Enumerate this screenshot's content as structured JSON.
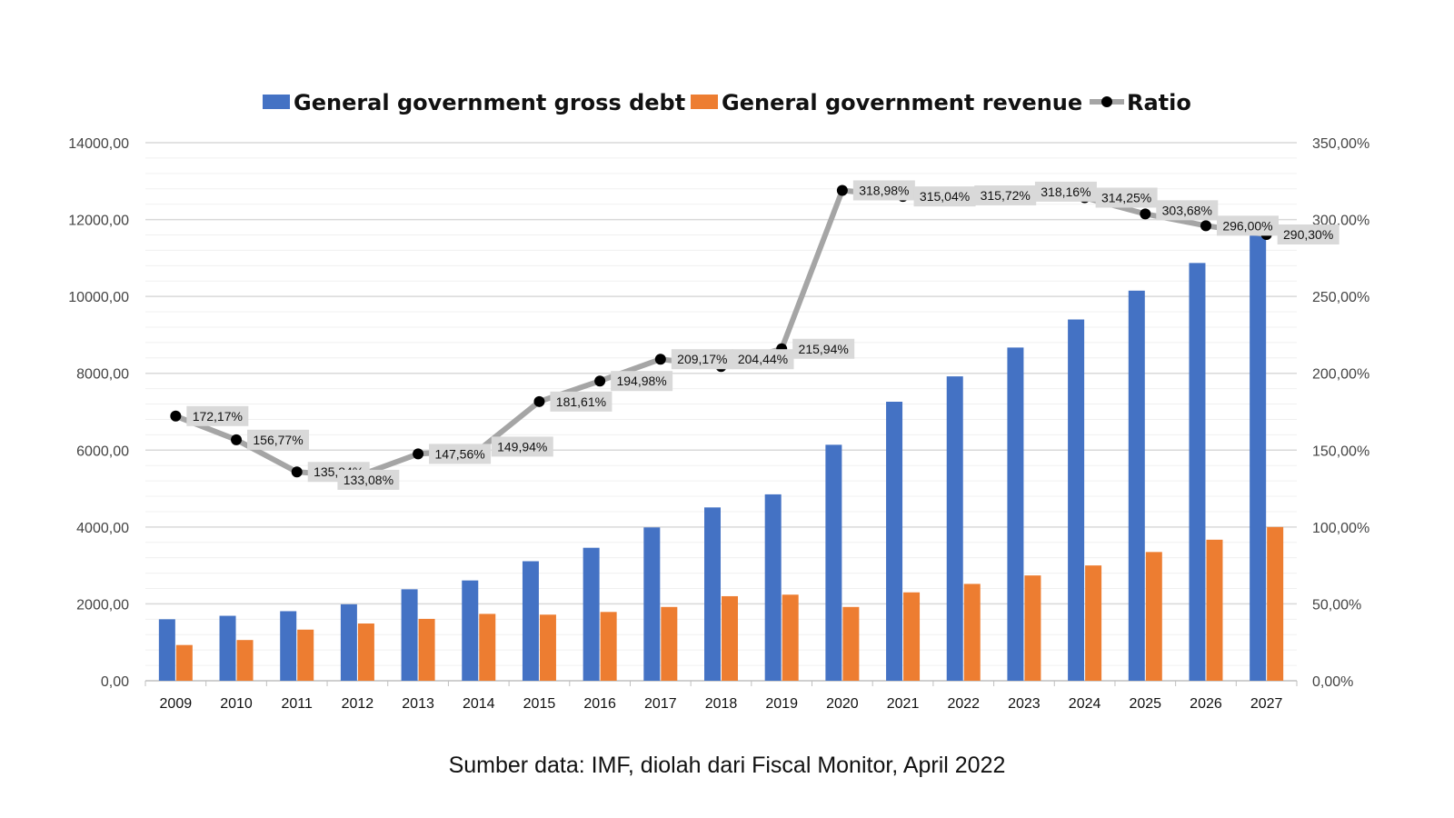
{
  "chart_data": {
    "type": "bar",
    "categories": [
      "2009",
      "2010",
      "2011",
      "2012",
      "2013",
      "2014",
      "2015",
      "2016",
      "2017",
      "2018",
      "2019",
      "2020",
      "2021",
      "2022",
      "2023",
      "2024",
      "2025",
      "2026",
      "2027"
    ],
    "series": [
      {
        "name": "General government gross debt",
        "type": "bar",
        "axis": "left",
        "color": "#4472c4",
        "values": [
          1600,
          1690,
          1810,
          1990,
          2380,
          2610,
          3110,
          3460,
          3990,
          4510,
          4850,
          6140,
          7260,
          7920,
          8670,
          9400,
          10150,
          10870,
          11650
        ]
      },
      {
        "name": "General government revenue",
        "type": "bar",
        "axis": "left",
        "color": "#ed7d31",
        "values": [
          930,
          1060,
          1330,
          1490,
          1610,
          1740,
          1720,
          1790,
          1920,
          2200,
          2240,
          1920,
          2300,
          2520,
          2740,
          3000,
          3350,
          3670,
          4000
        ]
      },
      {
        "name": "Ratio",
        "type": "line",
        "axis": "right",
        "color": "#a5a5a5",
        "marker_color": "#000000",
        "values": [
          172.17,
          156.77,
          135.84,
          133.08,
          147.56,
          149.94,
          181.61,
          194.98,
          209.17,
          204.44,
          215.94,
          318.98,
          315.04,
          315.72,
          318.16,
          314.25,
          303.68,
          296.0,
          290.3
        ],
        "labels": [
          "172,17%",
          "156,77%",
          "135,84%",
          "133,08%",
          "147,56%",
          "149,94%",
          "181,61%",
          "194,98%",
          "209,17%",
          "204,44%",
          "215,94%",
          "318,98%",
          "315,04%",
          "315,72%",
          "318,16%",
          "314,25%",
          "303,68%",
          "296,00%",
          "290,30%"
        ]
      }
    ],
    "y_left": {
      "ylim": [
        0,
        14000
      ],
      "ticks": [
        "0,00",
        "2000,00",
        "4000,00",
        "6000,00",
        "8000,00",
        "10000,00",
        "12000,00",
        "14000,00"
      ]
    },
    "y_right": {
      "ylim": [
        0,
        350
      ],
      "ticks": [
        "0,00%",
        "50,00%",
        "100,00%",
        "150,00%",
        "200,00%",
        "250,00%",
        "300,00%",
        "350,00%"
      ]
    },
    "legend_position": "top",
    "grid": true
  },
  "source_note": "Sumber data: IMF, diolah dari Fiscal Monitor, April 2022"
}
